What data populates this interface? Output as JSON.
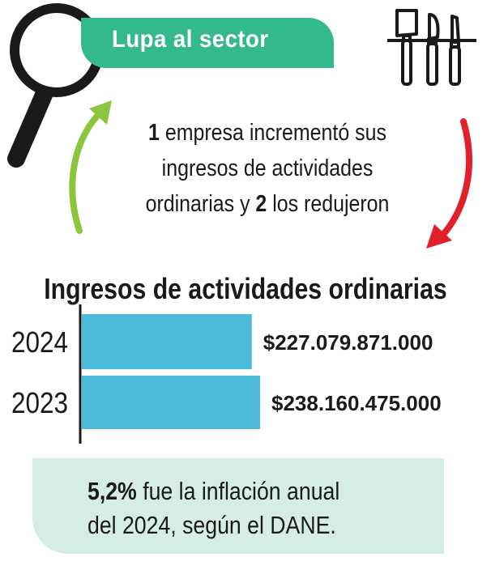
{
  "header": {
    "banner_label": "Lupa al sector"
  },
  "icons": {
    "magnifier": "magnifying-glass-icon",
    "knives": "knives-icon",
    "accent_green": "#33b98a",
    "arrow_up_color": "#8cc63e",
    "arrow_down_color": "#e2202b"
  },
  "statement": {
    "count_up": "1",
    "text_up": "empresa incrementó sus ingresos de actividades ordinarias y",
    "count_down": "2",
    "text_down": "los redujeron"
  },
  "chart_data": {
    "type": "bar",
    "orientation": "horizontal",
    "title": "Ingresos de actividades ordinarias",
    "categories": [
      "2024",
      "2023"
    ],
    "values": [
      227079871000,
      238160475000
    ],
    "value_labels": [
      "$227.079.871.000",
      "$238.160.475.000"
    ],
    "bar_color": "#4dbbdc",
    "grid": false
  },
  "note": {
    "highlight": "5,2%",
    "line1_rest": "fue la inflación anual",
    "line2": "del 2024, según el DANE."
  }
}
